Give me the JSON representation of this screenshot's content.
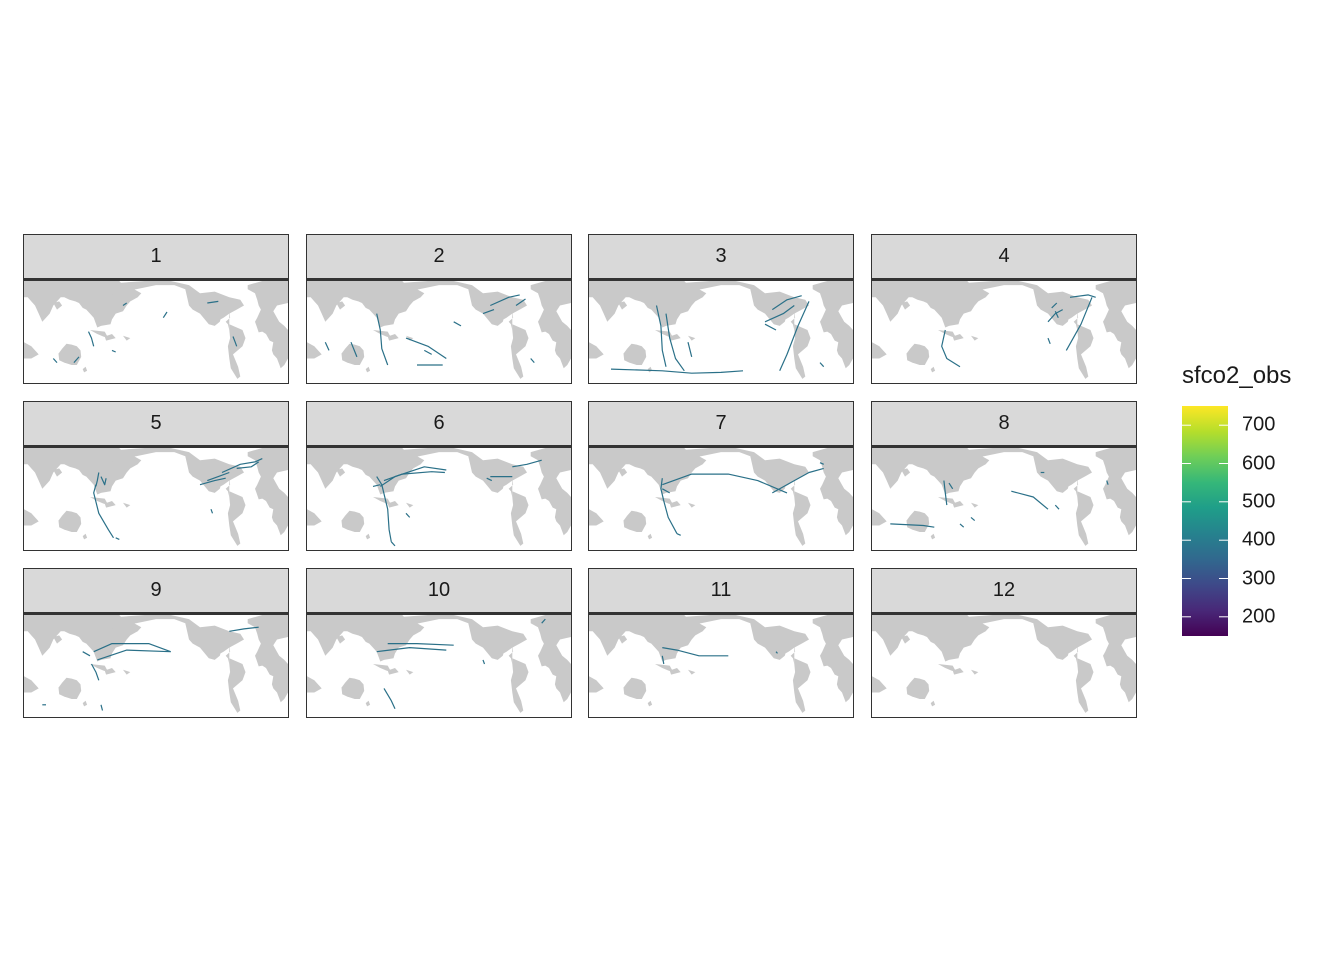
{
  "facets": [
    {
      "label": "1",
      "tracks": [
        [
          [
            -85,
            -15
          ],
          [
            -88,
            -5
          ],
          [
            -92,
            3
          ]
        ],
        [
          [
            -105,
            -28
          ],
          [
            -112,
            -35
          ]
        ],
        [
          [
            -60,
            -20
          ],
          [
            -55,
            -22
          ]
        ],
        [
          [
            10,
            20
          ],
          [
            15,
            27
          ]
        ],
        [
          [
            -45,
            35
          ],
          [
            -40,
            38
          ]
        ],
        [
          [
            70,
            38
          ],
          [
            85,
            40
          ]
        ],
        [
          [
            105,
            -3
          ],
          [
            108,
            -10
          ],
          [
            110,
            -15
          ]
        ],
        [
          [
            -140,
            -30
          ],
          [
            -135,
            -35
          ]
        ]
      ]
    },
    {
      "label": "2",
      "tracks": [
        [
          [
            -85,
            25
          ],
          [
            -80,
            5
          ],
          [
            -78,
            -18
          ],
          [
            -70,
            -38
          ]
        ],
        [
          [
            -45,
            -5
          ],
          [
            -15,
            -15
          ],
          [
            10,
            -30
          ]
        ],
        [
          [
            -20,
            -20
          ],
          [
            -10,
            -25
          ]
        ],
        [
          [
            -120,
            -10
          ],
          [
            -112,
            -28
          ]
        ],
        [
          [
            -155,
            -10
          ],
          [
            -150,
            -20
          ]
        ],
        [
          [
            -30,
            -38
          ],
          [
            5,
            -38
          ]
        ],
        [
          [
            20,
            15
          ],
          [
            30,
            10
          ]
        ],
        [
          [
            60,
            25
          ],
          [
            75,
            30
          ]
        ],
        [
          [
            70,
            35
          ],
          [
            95,
            45
          ],
          [
            110,
            48
          ]
        ],
        [
          [
            105,
            35
          ],
          [
            118,
            43
          ]
        ],
        [
          [
            125,
            -30
          ],
          [
            130,
            -35
          ]
        ]
      ]
    },
    {
      "label": "3",
      "tracks": [
        [
          [
            -88,
            35
          ],
          [
            -82,
            10
          ],
          [
            -80,
            -20
          ],
          [
            -75,
            -40
          ]
        ],
        [
          [
            -75,
            25
          ],
          [
            -70,
            -5
          ],
          [
            -62,
            -30
          ],
          [
            -50,
            -45
          ]
        ],
        [
          [
            -150,
            -43
          ],
          [
            -80,
            -45
          ],
          [
            -40,
            -48
          ],
          [
            0,
            -47
          ],
          [
            30,
            -45
          ]
        ],
        [
          [
            -45,
            -10
          ],
          [
            -40,
            -28
          ]
        ],
        [
          [
            60,
            15
          ],
          [
            85,
            25
          ],
          [
            100,
            35
          ]
        ],
        [
          [
            70,
            30
          ],
          [
            90,
            42
          ],
          [
            110,
            47
          ]
        ],
        [
          [
            120,
            40
          ],
          [
            105,
            10
          ],
          [
            90,
            -25
          ],
          [
            80,
            -45
          ]
        ],
        [
          [
            60,
            12
          ],
          [
            75,
            5
          ]
        ],
        [
          [
            135,
            -35
          ],
          [
            140,
            -40
          ]
        ]
      ]
    },
    {
      "label": "4",
      "tracks": [
        [
          [
            -80,
            5
          ],
          [
            -85,
            -15
          ],
          [
            -78,
            -30
          ],
          [
            -60,
            -40
          ]
        ],
        [
          [
            60,
            15
          ],
          [
            70,
            25
          ],
          [
            80,
            30
          ]
        ],
        [
          [
            70,
            28
          ],
          [
            74,
            20
          ]
        ],
        [
          [
            65,
            32
          ],
          [
            72,
            38
          ]
        ],
        [
          [
            90,
            45
          ],
          [
            115,
            48
          ],
          [
            125,
            45
          ]
        ],
        [
          [
            120,
            45
          ],
          [
            105,
            12
          ],
          [
            85,
            -20
          ]
        ],
        [
          [
            60,
            -5
          ],
          [
            63,
            -12
          ]
        ]
      ]
    },
    {
      "label": "5",
      "tracks": [
        [
          [
            -78,
            35
          ],
          [
            -80,
            25
          ],
          [
            -82,
            18
          ]
        ],
        [
          [
            -75,
            30
          ],
          [
            -70,
            20
          ],
          [
            -68,
            28
          ]
        ],
        [
          [
            -82,
            20
          ],
          [
            -85,
            10
          ],
          [
            -78,
            -15
          ],
          [
            -65,
            -35
          ],
          [
            -58,
            -45
          ]
        ],
        [
          [
            60,
            20
          ],
          [
            80,
            25
          ],
          [
            95,
            28
          ]
        ],
        [
          [
            70,
            25
          ],
          [
            85,
            30
          ],
          [
            100,
            35
          ]
        ],
        [
          [
            90,
            35
          ],
          [
            115,
            45
          ],
          [
            135,
            48
          ],
          [
            145,
            52
          ]
        ],
        [
          [
            110,
            40
          ],
          [
            130,
            42
          ],
          [
            140,
            48
          ]
        ],
        [
          [
            -55,
            -45
          ],
          [
            -50,
            -47
          ]
        ],
        [
          [
            75,
            -10
          ],
          [
            77,
            -15
          ]
        ]
      ]
    },
    {
      "label": "6",
      "tracks": [
        [
          [
            -85,
            30
          ],
          [
            -78,
            20
          ],
          [
            -70,
            -10
          ],
          [
            -68,
            -35
          ],
          [
            -65,
            -50
          ]
        ],
        [
          [
            -80,
            18
          ],
          [
            -60,
            30
          ],
          [
            -20,
            42
          ],
          [
            10,
            38
          ]
        ],
        [
          [
            -75,
            25
          ],
          [
            -50,
            33
          ],
          [
            -10,
            36
          ],
          [
            8,
            35
          ]
        ],
        [
          [
            -80,
            20
          ],
          [
            -90,
            18
          ]
        ],
        [
          [
            70,
            30
          ],
          [
            85,
            30
          ],
          [
            100,
            30
          ]
        ],
        [
          [
            65,
            28
          ],
          [
            72,
            25
          ]
        ],
        [
          [
            100,
            42
          ],
          [
            120,
            45
          ],
          [
            140,
            50
          ]
        ],
        [
          [
            -45,
            -15
          ],
          [
            -40,
            -20
          ]
        ],
        [
          [
            -65,
            -50
          ],
          [
            -60,
            -55
          ]
        ]
      ]
    },
    {
      "label": "7",
      "tracks": [
        [
          [
            -80,
            28
          ],
          [
            -82,
            15
          ],
          [
            -78,
            0
          ],
          [
            -72,
            -20
          ],
          [
            -60,
            -40
          ]
        ],
        [
          [
            -80,
            20
          ],
          [
            -40,
            33
          ],
          [
            10,
            33
          ],
          [
            50,
            25
          ],
          [
            90,
            10
          ]
        ],
        [
          [
            70,
            10
          ],
          [
            100,
            25
          ],
          [
            120,
            35
          ],
          [
            140,
            40
          ]
        ],
        [
          [
            -80,
            15
          ],
          [
            -70,
            10
          ]
        ],
        [
          [
            135,
            47
          ],
          [
            140,
            45
          ]
        ],
        [
          [
            -60,
            -40
          ],
          [
            -55,
            -42
          ]
        ]
      ]
    },
    {
      "label": "8",
      "tracks": [
        [
          [
            -82,
            25
          ],
          [
            -80,
            10
          ],
          [
            -78,
            -5
          ]
        ],
        [
          [
            -75,
            22
          ],
          [
            -70,
            15
          ]
        ],
        [
          [
            -155,
            -28
          ],
          [
            -110,
            -30
          ],
          [
            -95,
            -32
          ]
        ],
        [
          [
            -60,
            -28
          ],
          [
            -55,
            -32
          ]
        ],
        [
          [
            10,
            12
          ],
          [
            40,
            5
          ],
          [
            60,
            -10
          ]
        ],
        [
          [
            -45,
            -20
          ],
          [
            -40,
            -24
          ]
        ],
        [
          [
            70,
            -5
          ],
          [
            75,
            -10
          ]
        ],
        [
          [
            50,
            35
          ],
          [
            55,
            35
          ]
        ],
        [
          [
            140,
            25
          ],
          [
            142,
            20
          ]
        ]
      ]
    },
    {
      "label": "9",
      "tracks": [
        [
          [
            -88,
            5
          ],
          [
            -82,
            -5
          ],
          [
            -78,
            -15
          ]
        ],
        [
          [
            -85,
            20
          ],
          [
            -60,
            30
          ],
          [
            -10,
            30
          ],
          [
            20,
            20
          ]
        ],
        [
          [
            -80,
            10
          ],
          [
            -40,
            22
          ],
          [
            20,
            20
          ]
        ],
        [
          [
            -100,
            20
          ],
          [
            -90,
            15
          ]
        ],
        [
          [
            100,
            45
          ],
          [
            120,
            48
          ],
          [
            140,
            50
          ]
        ],
        [
          [
            -155,
            -45
          ],
          [
            -150,
            -45
          ]
        ],
        [
          [
            -75,
            -45
          ],
          [
            -73,
            -52
          ]
        ]
      ]
    },
    {
      "label": "10",
      "tracks": [
        [
          [
            -85,
            20
          ],
          [
            -40,
            25
          ],
          [
            10,
            22
          ]
        ],
        [
          [
            -70,
            30
          ],
          [
            -30,
            30
          ],
          [
            20,
            28
          ]
        ],
        [
          [
            -75,
            -25
          ],
          [
            -65,
            -40
          ],
          [
            -60,
            -50
          ]
        ],
        [
          [
            140,
            55
          ],
          [
            145,
            60
          ]
        ],
        [
          [
            60,
            10
          ],
          [
            62,
            5
          ]
        ]
      ]
    },
    {
      "label": "11",
      "tracks": [
        [
          [
            -80,
            25
          ],
          [
            -60,
            22
          ],
          [
            -30,
            15
          ],
          [
            10,
            15
          ]
        ],
        [
          [
            -80,
            15
          ],
          [
            -78,
            5
          ]
        ],
        [
          [
            75,
            20
          ],
          [
            77,
            18
          ]
        ]
      ]
    },
    {
      "label": "12",
      "tracks": []
    }
  ],
  "legend": {
    "title": "sfco2_obs",
    "breaks": [
      "200",
      "300",
      "400",
      "500",
      "600",
      "700"
    ],
    "range": [
      150,
      750
    ],
    "colors": [
      "#440154",
      "#482878",
      "#3e4989",
      "#31688e",
      "#26828e",
      "#1f9e89",
      "#35b779",
      "#6ece58",
      "#b5de2b",
      "#fde725"
    ]
  },
  "colors": {
    "land": "#c9c9c9",
    "track": "#2a7088",
    "strip_bg": "#d9d9d9",
    "border": "#333333"
  }
}
